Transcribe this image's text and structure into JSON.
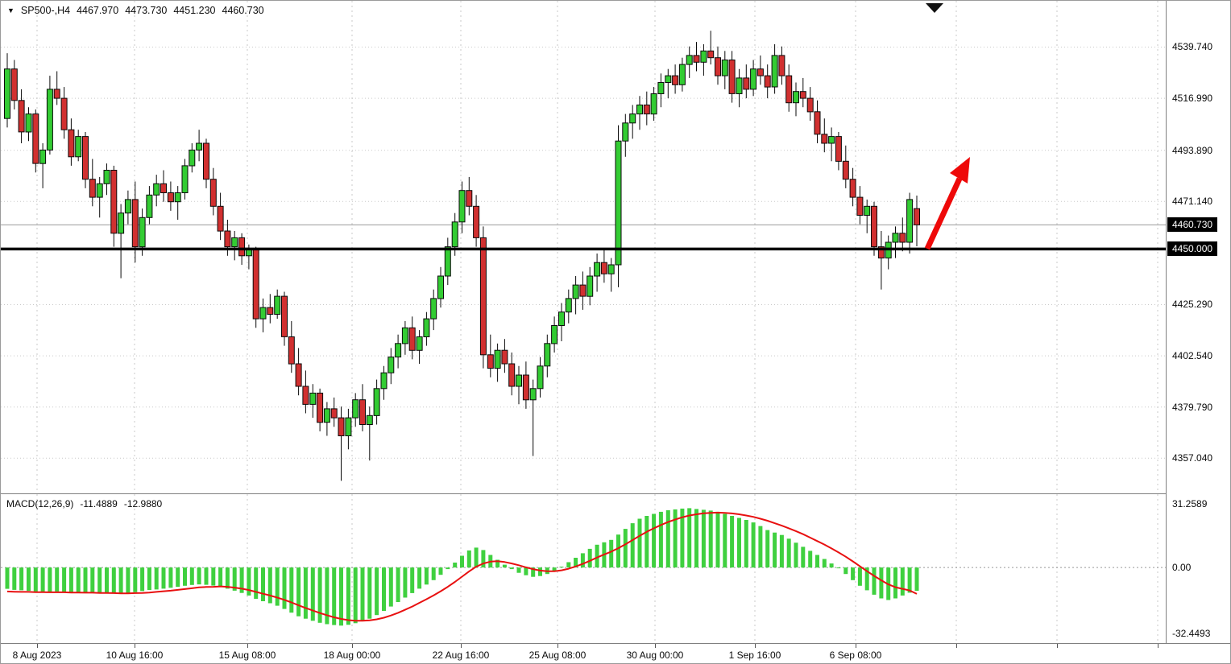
{
  "legend": {
    "collapse_icon": "triangle-down",
    "symbol_period": "SP500-,H4",
    "ohlc": {
      "open": "4467.970",
      "high": "4473.730",
      "low": "4451.230",
      "close": "4460.730"
    }
  },
  "price_axis": {
    "plain": [
      {
        "text": "4539.740",
        "price": 4539.74
      },
      {
        "text": "4516.990",
        "price": 4516.99
      },
      {
        "text": "4493.890",
        "price": 4493.89
      },
      {
        "text": "4471.140",
        "price": 4471.14
      },
      {
        "text": "4425.290",
        "price": 4425.29
      },
      {
        "text": "4402.540",
        "price": 4402.54
      },
      {
        "text": "4379.790",
        "price": 4379.79
      },
      {
        "text": "4357.040",
        "price": 4357.04
      }
    ],
    "badges": [
      {
        "text": "4460.730",
        "price": 4460.73
      },
      {
        "text": "4450.000",
        "price": 4450.0
      }
    ]
  },
  "macd_panel": {
    "label": "MACD(12,26,9)",
    "main_value": "-11.4889",
    "signal_value": "-12.9880",
    "axis": [
      {
        "text": "31.2589",
        "value": 31.2589
      },
      {
        "text": "0.00",
        "value": 0
      },
      {
        "text": "-32.4493",
        "value": -32.4493
      }
    ]
  },
  "time_axis": {
    "labels": [
      "8 Aug 2023",
      "10 Aug 16:00",
      "15 Aug 08:00",
      "18 Aug 00:00",
      "22 Aug 16:00",
      "25 Aug 08:00",
      "30 Aug 00:00",
      "1 Sep 16:00",
      "6 Sep 08:00"
    ]
  },
  "colors": {
    "up": "#33cc33",
    "down": "#d13030",
    "candle_border": "#0a0a0a",
    "grid": "#c9c9c9",
    "support_line": "#000000",
    "current_line": "#9a9a9a",
    "macd_hist": "#3fd03f",
    "macd_signal": "#e81010",
    "arrow": "#ee0909",
    "badge_bg": "#000000",
    "badge_text": "#ffffff"
  },
  "chart_data": {
    "type": "candlestick",
    "symbol": "SP500-",
    "timeframe": "H4",
    "title": "SP500-,H4",
    "ylim": [
      4345,
      4556
    ],
    "y_ticks": [
      4539.74,
      4516.99,
      4493.89,
      4471.14,
      4425.29,
      4402.54,
      4379.79,
      4357.04
    ],
    "x_tick_labels": [
      "8 Aug 2023",
      "10 Aug 16:00",
      "15 Aug 08:00",
      "18 Aug 00:00",
      "22 Aug 16:00",
      "25 Aug 08:00",
      "30 Aug 00:00",
      "1 Sep 16:00",
      "6 Sep 08:00"
    ],
    "current_price": 4460.73,
    "support_line": 4450.0,
    "last_bar_ohlc": [
      4467.97,
      4473.73,
      4451.23,
      4460.73
    ],
    "annotations": [
      {
        "type": "arrow",
        "direction": "up-right",
        "color": "#ee0909",
        "meaning": "projected bounce up from 4450 support"
      }
    ],
    "ohlc": [
      [
        4508,
        4537,
        4504,
        4530
      ],
      [
        4530,
        4534,
        4512,
        4516
      ],
      [
        4516,
        4521,
        4497,
        4502
      ],
      [
        4502,
        4513,
        4498,
        4510
      ],
      [
        4510,
        4512,
        4484,
        4488
      ],
      [
        4488,
        4497,
        4477,
        4494
      ],
      [
        4494,
        4527,
        4492,
        4521
      ],
      [
        4521,
        4529,
        4514,
        4517
      ],
      [
        4517,
        4522,
        4499,
        4503
      ],
      [
        4503,
        4508,
        4487,
        4491
      ],
      [
        4491,
        4503,
        4489,
        4500
      ],
      [
        4500,
        4502,
        4477,
        4481
      ],
      [
        4481,
        4490,
        4469,
        4473
      ],
      [
        4473,
        4482,
        4464,
        4479
      ],
      [
        4479,
        4488,
        4474,
        4485
      ],
      [
        4485,
        4487,
        4451,
        4457
      ],
      [
        4457,
        4470,
        4437,
        4466
      ],
      [
        4466,
        4476,
        4461,
        4472
      ],
      [
        4472,
        4480,
        4444,
        4451
      ],
      [
        4451,
        4468,
        4447,
        4464
      ],
      [
        4464,
        4478,
        4461,
        4474
      ],
      [
        4474,
        4483,
        4469,
        4479
      ],
      [
        4479,
        4485,
        4471,
        4475
      ],
      [
        4475,
        4480,
        4467,
        4471
      ],
      [
        4471,
        4478,
        4463,
        4475
      ],
      [
        4475,
        4490,
        4472,
        4487
      ],
      [
        4487,
        4497,
        4484,
        4494
      ],
      [
        4494,
        4503,
        4489,
        4497
      ],
      [
        4497,
        4499,
        4477,
        4481
      ],
      [
        4481,
        4486,
        4465,
        4469
      ],
      [
        4469,
        4475,
        4454,
        4458
      ],
      [
        4458,
        4463,
        4447,
        4451
      ],
      [
        4451,
        4458,
        4445,
        4455
      ],
      [
        4455,
        4457,
        4443,
        4447
      ],
      [
        4447,
        4452,
        4441,
        4450
      ],
      [
        4450,
        4451,
        4415,
        4419
      ],
      [
        4419,
        4428,
        4413,
        4424
      ],
      [
        4424,
        4430,
        4417,
        4421
      ],
      [
        4421,
        4432,
        4419,
        4429
      ],
      [
        4429,
        4431,
        4407,
        4411
      ],
      [
        4411,
        4418,
        4395,
        4399
      ],
      [
        4399,
        4406,
        4385,
        4389
      ],
      [
        4389,
        4396,
        4377,
        4381
      ],
      [
        4381,
        4390,
        4375,
        4386
      ],
      [
        4386,
        4388,
        4369,
        4373
      ],
      [
        4373,
        4382,
        4367,
        4379
      ],
      [
        4379,
        4384,
        4371,
        4375
      ],
      [
        4375,
        4380,
        4347,
        4367
      ],
      [
        4367,
        4379,
        4361,
        4375
      ],
      [
        4375,
        4386,
        4371,
        4383
      ],
      [
        4383,
        4390,
        4369,
        4372
      ],
      [
        4372,
        4380,
        4356,
        4376
      ],
      [
        4376,
        4392,
        4372,
        4388
      ],
      [
        4388,
        4398,
        4383,
        4395
      ],
      [
        4395,
        4406,
        4390,
        4402
      ],
      [
        4402,
        4412,
        4397,
        4408
      ],
      [
        4408,
        4418,
        4403,
        4415
      ],
      [
        4415,
        4420,
        4401,
        4405
      ],
      [
        4405,
        4414,
        4399,
        4411
      ],
      [
        4411,
        4422,
        4407,
        4419
      ],
      [
        4419,
        4432,
        4414,
        4428
      ],
      [
        4428,
        4442,
        4424,
        4438
      ],
      [
        4438,
        4455,
        4434,
        4451
      ],
      [
        4451,
        4466,
        4447,
        4462
      ],
      [
        4462,
        4480,
        4457,
        4476
      ],
      [
        4476,
        4482,
        4465,
        4469
      ],
      [
        4469,
        4474,
        4451,
        4455
      ],
      [
        4455,
        4460,
        4397,
        4403
      ],
      [
        4403,
        4412,
        4393,
        4397
      ],
      [
        4397,
        4408,
        4391,
        4405
      ],
      [
        4405,
        4410,
        4395,
        4399
      ],
      [
        4399,
        4404,
        4385,
        4389
      ],
      [
        4389,
        4398,
        4381,
        4394
      ],
      [
        4394,
        4400,
        4379,
        4383
      ],
      [
        4383,
        4392,
        4358,
        4388
      ],
      [
        4388,
        4402,
        4384,
        4398
      ],
      [
        4398,
        4412,
        4393,
        4408
      ],
      [
        4408,
        4420,
        4404,
        4416
      ],
      [
        4416,
        4426,
        4409,
        4422
      ],
      [
        4422,
        4432,
        4417,
        4428
      ],
      [
        4428,
        4438,
        4421,
        4434
      ],
      [
        4434,
        4440,
        4423,
        4429
      ],
      [
        4429,
        4442,
        4425,
        4438
      ],
      [
        4438,
        4448,
        4431,
        4444
      ],
      [
        4444,
        4450,
        4435,
        4439
      ],
      [
        4439,
        4446,
        4431,
        4443
      ],
      [
        4443,
        4505,
        4433,
        4498
      ],
      [
        4498,
        4510,
        4491,
        4506
      ],
      [
        4506,
        4514,
        4499,
        4510
      ],
      [
        4510,
        4518,
        4503,
        4514
      ],
      [
        4514,
        4520,
        4505,
        4510
      ],
      [
        4510,
        4522,
        4507,
        4519
      ],
      [
        4519,
        4528,
        4513,
        4524
      ],
      [
        4524,
        4530,
        4517,
        4527
      ],
      [
        4527,
        4532,
        4519,
        4523
      ],
      [
        4523,
        4535,
        4520,
        4532
      ],
      [
        4532,
        4540,
        4526,
        4536
      ],
      [
        4536,
        4542,
        4529,
        4533
      ],
      [
        4533,
        4541,
        4527,
        4538
      ],
      [
        4538,
        4547,
        4532,
        4535
      ],
      [
        4535,
        4540,
        4523,
        4527
      ],
      [
        4527,
        4538,
        4521,
        4534
      ],
      [
        4534,
        4538,
        4515,
        4519
      ],
      [
        4519,
        4530,
        4513,
        4526
      ],
      [
        4526,
        4532,
        4517,
        4521
      ],
      [
        4521,
        4534,
        4518,
        4530
      ],
      [
        4530,
        4536,
        4523,
        4527
      ],
      [
        4527,
        4532,
        4517,
        4522
      ],
      [
        4522,
        4541,
        4519,
        4536
      ],
      [
        4536,
        4540,
        4523,
        4527
      ],
      [
        4527,
        4532,
        4511,
        4515
      ],
      [
        4515,
        4524,
        4509,
        4520
      ],
      [
        4520,
        4526,
        4513,
        4517
      ],
      [
        4517,
        4522,
        4507,
        4511
      ],
      [
        4511,
        4516,
        4497,
        4501
      ],
      [
        4501,
        4508,
        4493,
        4497
      ],
      [
        4497,
        4504,
        4489,
        4500
      ],
      [
        4500,
        4502,
        4485,
        4489
      ],
      [
        4489,
        4496,
        4477,
        4481
      ],
      [
        4481,
        4486,
        4469,
        4473
      ],
      [
        4473,
        4478,
        4461,
        4465
      ],
      [
        4465,
        4472,
        4457,
        4469
      ],
      [
        4469,
        4471,
        4447,
        4451
      ],
      [
        4451,
        4458,
        4432,
        4446
      ],
      [
        4446,
        4456,
        4441,
        4453
      ],
      [
        4453,
        4460,
        4446,
        4457
      ],
      [
        4457,
        4464,
        4449,
        4453
      ],
      [
        4453,
        4475,
        4448,
        4472
      ],
      [
        4467.97,
        4473.73,
        4451.23,
        4460.73
      ]
    ],
    "macd": {
      "params": "12,26,9",
      "ylim": [
        -36,
        34.5
      ],
      "main": [
        -10.5,
        -11,
        -11.2,
        -11.5,
        -11.8,
        -12,
        -12,
        -11.8,
        -12,
        -12.2,
        -12.3,
        -12.4,
        -12.5,
        -12.6,
        -12.4,
        -12.7,
        -13,
        -12.6,
        -12.1,
        -11.6,
        -11.1,
        -10.8,
        -10.4,
        -10,
        -9.5,
        -9,
        -8.6,
        -8.3,
        -8.5,
        -8.9,
        -9.5,
        -10.4,
        -11.4,
        -12.5,
        -13.8,
        -15.4,
        -16.6,
        -17.6,
        -18.8,
        -20.4,
        -22.2,
        -24,
        -25.2,
        -26.2,
        -27.2,
        -27.9,
        -28.3,
        -28.6,
        -28.2,
        -27.4,
        -26.4,
        -25.2,
        -23.4,
        -21.4,
        -19.2,
        -17,
        -14.8,
        -12.6,
        -10.4,
        -8.4,
        -6.2,
        -3.6,
        -0.8,
        2.4,
        5.8,
        8.4,
        9.8,
        8.6,
        6.2,
        3.8,
        1.4,
        -0.8,
        -2.6,
        -3.8,
        -4.6,
        -4.2,
        -3.2,
        -1.6,
        0.4,
        2.6,
        4.8,
        7,
        9.2,
        11.2,
        12.4,
        13.6,
        16.2,
        19,
        21.8,
        24,
        25.4,
        26.4,
        27.4,
        28.2,
        28.6,
        29,
        29.2,
        28.8,
        28.4,
        28,
        27.4,
        26.4,
        25.4,
        24.4,
        23.4,
        22.2,
        20.4,
        18.4,
        17.2,
        16,
        14.2,
        12.2,
        10.2,
        8.2,
        6.2,
        4.2,
        2,
        -0.4,
        -3.2,
        -6.2,
        -9,
        -11.2,
        -13.4,
        -15.2,
        -16,
        -15.2,
        -13.8,
        -12.4,
        -11.4889
      ],
      "signal": [
        -11.8,
        -11.9,
        -12,
        -12,
        -12.1,
        -12.1,
        -12.2,
        -12.2,
        -12.2,
        -12.3,
        -12.3,
        -12.4,
        -12.4,
        -12.5,
        -12.5,
        -12.6,
        -12.7,
        -12.7,
        -12.6,
        -12.5,
        -12.3,
        -12,
        -11.7,
        -11.4,
        -11,
        -10.6,
        -10.2,
        -9.8,
        -9.6,
        -9.5,
        -9.3,
        -9.5,
        -9.9,
        -10.4,
        -11.1,
        -12,
        -12.9,
        -13.8,
        -14.8,
        -15.9,
        -17.2,
        -18.6,
        -19.9,
        -21.2,
        -22.4,
        -23.5,
        -24.5,
        -25.3,
        -25.9,
        -26.2,
        -26.2,
        -26,
        -25.5,
        -24.7,
        -23.6,
        -22.3,
        -20.8,
        -19.2,
        -17.4,
        -15.6,
        -13.7,
        -11.7,
        -9.5,
        -7.1,
        -4.5,
        -1.9,
        0.4,
        2,
        2.9,
        3.1,
        2.7,
        2,
        1.1,
        0.1,
        -0.8,
        -1.5,
        -1.8,
        -1.8,
        -1.4,
        -0.6,
        0.5,
        1.8,
        3.3,
        4.9,
        6.4,
        7.8,
        9.5,
        11.4,
        13.5,
        15.6,
        17.6,
        19.3,
        20.9,
        22.4,
        23.6,
        24.7,
        25.6,
        26.2,
        26.7,
        26.9,
        27,
        26.9,
        26.6,
        26.2,
        25.6,
        24.9,
        24,
        23,
        21.8,
        20.6,
        19.3,
        17.9,
        16.4,
        14.7,
        13,
        11.3,
        9.4,
        7.4,
        5.3,
        3,
        0.6,
        -1.8,
        -4.1,
        -6.3,
        -8.3,
        -9.7,
        -10.5,
        -11.3,
        -12.988
      ]
    }
  }
}
